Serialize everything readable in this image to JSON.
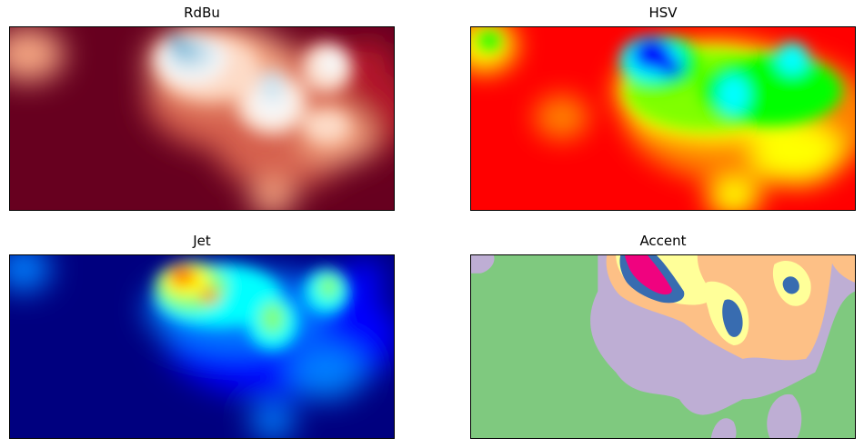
{
  "figure": {
    "panels": [
      {
        "title": "RdBu",
        "colormap": "RdBu"
      },
      {
        "title": "HSV",
        "colormap": "HSV"
      },
      {
        "title": "Jet",
        "colormap": "Jet"
      },
      {
        "title": "Accent",
        "colormap": "Accent"
      }
    ]
  },
  "chart_data": [
    {
      "type": "heatmap",
      "title": "RdBu",
      "colormap": "RdBu",
      "colors": [
        "#67001f",
        "#b2182b",
        "#d6604d",
        "#f4a582",
        "#fddbc7",
        "#f7f7f7",
        "#d1e5f0",
        "#92c5de",
        "#4393c3"
      ],
      "grid": false,
      "xticks": [],
      "yticks": []
    },
    {
      "type": "heatmap",
      "title": "HSV",
      "colormap": "HSV",
      "colors": [
        "#ff0000",
        "#ff8000",
        "#ffff00",
        "#80ff00",
        "#00ff00",
        "#00ffff",
        "#0000ff"
      ],
      "grid": false,
      "xticks": [],
      "yticks": []
    },
    {
      "type": "heatmap",
      "title": "Jet",
      "colormap": "Jet",
      "colors": [
        "#00007f",
        "#0000ff",
        "#007fff",
        "#00ffff",
        "#7fff7f",
        "#ffff00",
        "#ff7f00",
        "#ff0000"
      ],
      "grid": false,
      "xticks": [],
      "yticks": []
    },
    {
      "type": "heatmap",
      "title": "Accent",
      "colormap": "Accent",
      "colors": [
        "#7fc97f",
        "#beaed4",
        "#fdc086",
        "#ffff99",
        "#386cb0",
        "#f0027f"
      ],
      "grid": false,
      "xticks": [],
      "yticks": []
    }
  ]
}
